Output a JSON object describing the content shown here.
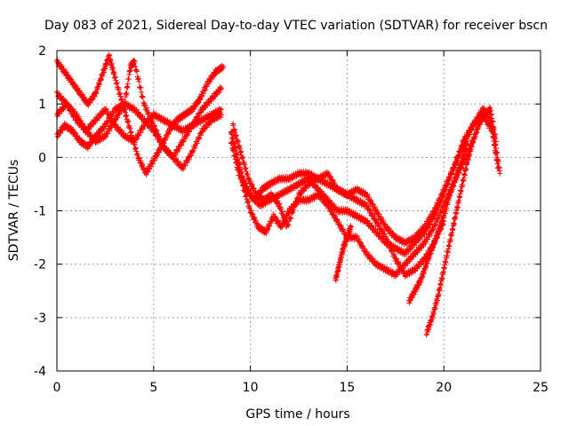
{
  "chart_data": {
    "type": "scatter",
    "title": "Day 083 of 2021, Sidereal Day-to-day VTEC variation (SDTVAR) for receiver bscn",
    "xlabel": "GPS time / hours",
    "ylabel": "SDTVAR / TECUs",
    "xlim": [
      0,
      25
    ],
    "ylim": [
      -4,
      2
    ],
    "xticks": [
      0,
      5,
      10,
      15,
      20,
      25
    ],
    "yticks": [
      -4,
      -3,
      -2,
      -1,
      0,
      1,
      2
    ],
    "grid": true,
    "marker": "+",
    "color": "#ff0000",
    "series": [
      {
        "x": [
          0.0,
          0.4,
          0.8,
          1.2,
          1.6,
          2.0,
          2.4,
          2.7,
          3.0,
          3.4,
          3.8,
          4.2,
          4.6,
          5.0,
          5.4,
          5.8,
          6.2,
          6.6,
          7.0,
          7.4,
          7.8,
          8.2,
          8.6
        ],
        "y": [
          1.8,
          1.6,
          1.4,
          1.2,
          1.0,
          1.2,
          1.6,
          1.9,
          1.5,
          1.0,
          0.5,
          0.0,
          -0.3,
          -0.05,
          0.2,
          0.5,
          0.7,
          0.8,
          0.9,
          1.1,
          1.4,
          1.6,
          1.7
        ]
      },
      {
        "x": [
          0.0,
          0.5,
          1.0,
          1.5,
          2.0,
          2.5,
          3.0,
          3.5,
          3.8,
          4.0,
          4.5,
          5.0,
          5.5,
          6.0,
          6.5,
          7.0,
          7.5,
          8.0,
          8.5
        ],
        "y": [
          1.2,
          1.0,
          0.8,
          0.5,
          0.3,
          0.4,
          0.7,
          1.0,
          1.7,
          1.8,
          1.0,
          0.6,
          0.2,
          0.0,
          0.3,
          0.6,
          0.9,
          1.1,
          1.3
        ]
      },
      {
        "x": [
          0.0,
          0.4,
          0.8,
          1.2,
          1.6,
          2.0,
          2.5,
          3.0,
          3.5,
          4.0,
          4.5,
          5.0,
          5.5,
          6.0,
          6.5,
          7.0,
          7.5,
          8.0,
          8.5
        ],
        "y": [
          0.4,
          0.6,
          0.5,
          0.3,
          0.2,
          0.4,
          0.6,
          0.9,
          1.0,
          0.9,
          0.7,
          0.5,
          0.2,
          0.0,
          -0.2,
          0.1,
          0.5,
          0.7,
          0.8
        ]
      },
      {
        "x": [
          0.0,
          0.5,
          1.0,
          1.5,
          2.0,
          2.5,
          3.0,
          3.5,
          4.0,
          4.5,
          5.0,
          5.5,
          6.0,
          6.5,
          7.0,
          7.5,
          8.0,
          8.5
        ],
        "y": [
          0.8,
          1.0,
          0.7,
          0.5,
          0.7,
          0.9,
          0.6,
          0.4,
          0.3,
          0.6,
          0.8,
          0.7,
          0.6,
          0.5,
          0.6,
          0.7,
          0.8,
          0.9
        ]
      },
      {
        "x": [
          9.0,
          9.3,
          9.6,
          10.0,
          10.5,
          11.0,
          11.5,
          12.0,
          12.5,
          13.0,
          13.5,
          14.0,
          14.5,
          15.0,
          15.5,
          16.0,
          16.5,
          17.0,
          17.5,
          18.0,
          18.5,
          19.0,
          19.5,
          20.0,
          20.5,
          21.0,
          21.5,
          22.0,
          22.3,
          22.6,
          22.9
        ],
        "y": [
          0.5,
          0.0,
          -0.4,
          -0.7,
          -0.9,
          -0.8,
          -0.7,
          -0.6,
          -0.5,
          -0.4,
          -0.6,
          -0.8,
          -1.0,
          -1.0,
          -1.1,
          -1.2,
          -1.4,
          -1.6,
          -1.7,
          -1.8,
          -1.6,
          -1.4,
          -1.1,
          -0.7,
          -0.2,
          0.3,
          0.6,
          0.9,
          0.8,
          0.4,
          -0.3
        ]
      },
      {
        "x": [
          9.0,
          9.4,
          9.8,
          10.2,
          10.6,
          11.0,
          11.5,
          12.0,
          12.5,
          13.0,
          13.5,
          14.0,
          14.5,
          15.0,
          15.5,
          16.0,
          16.5,
          17.0,
          17.5,
          18.0,
          18.5,
          19.0,
          19.5,
          20.0,
          20.5,
          21.0,
          21.5,
          22.0,
          22.5,
          22.8
        ],
        "y": [
          0.3,
          -0.3,
          -0.6,
          -0.8,
          -0.6,
          -0.5,
          -0.4,
          -0.4,
          -0.3,
          -0.3,
          -0.4,
          -0.5,
          -0.6,
          -0.7,
          -0.6,
          -0.7,
          -1.0,
          -1.3,
          -1.5,
          -1.6,
          -1.5,
          -1.3,
          -1.0,
          -0.6,
          -0.2,
          0.2,
          0.6,
          0.8,
          0.5,
          -0.2
        ]
      },
      {
        "x": [
          9.2,
          9.6,
          10.0,
          10.4,
          10.8,
          11.2,
          11.6,
          12.0,
          12.5,
          13.0,
          13.5,
          14.0,
          14.5,
          15.0,
          15.5,
          16.0,
          16.5,
          17.0,
          17.5,
          18.0,
          18.5,
          19.0,
          19.5,
          20.0,
          20.5,
          21.0,
          21.5
        ],
        "y": [
          0.2,
          -0.5,
          -1.0,
          -1.3,
          -1.4,
          -1.1,
          -1.3,
          -1.0,
          -0.8,
          -0.8,
          -0.7,
          -0.9,
          -1.2,
          -1.5,
          -1.5,
          -1.8,
          -2.0,
          -2.1,
          -2.2,
          -2.0,
          -1.8,
          -1.6,
          -1.3,
          -0.9,
          -0.5,
          -0.1,
          0.3
        ]
      },
      {
        "x": [
          9.1,
          9.5,
          9.9,
          10.3,
          10.7,
          11.1,
          11.5,
          11.9,
          12.5,
          13.0,
          13.5,
          14.0,
          14.5,
          15.0,
          15.5,
          16.0,
          16.5,
          17.0,
          17.5,
          18.0,
          18.5,
          19.0,
          19.5,
          20.0
        ],
        "y": [
          0.6,
          0.1,
          -0.4,
          -0.7,
          -0.8,
          -0.7,
          -0.9,
          -1.3,
          -0.7,
          -0.5,
          -0.4,
          -0.3,
          -0.6,
          -0.7,
          -0.8,
          -0.9,
          -1.2,
          -1.5,
          -1.9,
          -2.2,
          -2.1,
          -1.9,
          -1.6,
          -1.2
        ]
      },
      {
        "x": [
          14.4,
          14.6,
          14.8,
          15.0,
          15.2
        ],
        "y": [
          -2.3,
          -2.0,
          -1.7,
          -1.5,
          -1.3
        ]
      },
      {
        "x": [
          18.2,
          18.5,
          18.8,
          19.1,
          19.4,
          19.7,
          20.0,
          20.3,
          20.6,
          20.9,
          21.2
        ],
        "y": [
          -2.7,
          -2.5,
          -2.3,
          -2.0,
          -1.7,
          -1.4,
          -1.1,
          -0.7,
          -0.4,
          -0.1,
          0.3
        ]
      },
      {
        "x": [
          19.1,
          19.4,
          19.7,
          20.0,
          20.3,
          20.6,
          20.9,
          21.2,
          21.5,
          21.8,
          22.1,
          22.4,
          22.7
        ],
        "y": [
          -3.3,
          -3.0,
          -2.6,
          -2.1,
          -1.6,
          -1.1,
          -0.6,
          -0.1,
          0.3,
          0.6,
          0.8,
          0.9,
          0.3
        ]
      }
    ]
  }
}
